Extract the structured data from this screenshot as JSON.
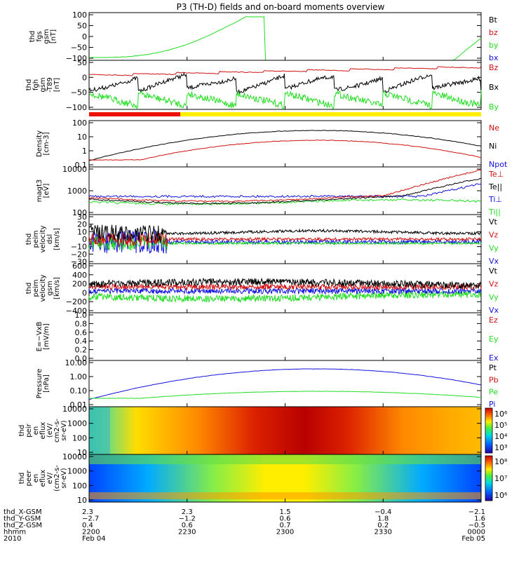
{
  "title": "P3 (TH-D) fields and on-board moments overview",
  "colors": {
    "black": "#000000",
    "red": "#d01010",
    "green": "#22dd22",
    "blue": "#1010dd",
    "yellow": "#ffee00",
    "orange": "#ee6600"
  },
  "panels": [
    {
      "id": "fgs",
      "ylabel": [
        "thd",
        "fgs",
        "gsm",
        "[nT]"
      ],
      "yticks": [
        "100",
        "50",
        "0",
        "−50",
        "−100"
      ],
      "legend": [
        {
          "text": "Bt",
          "color": "black"
        },
        {
          "text": "bz",
          "color": "red"
        },
        {
          "text": "by",
          "color": "green"
        },
        {
          "text": "bx",
          "color": "blue"
        }
      ]
    },
    {
      "id": "fgh",
      "ylabel": [
        "thd",
        "fgh",
        "gsm",
        "-T89",
        "[nT]"
      ],
      "yticks": [
        "50",
        "0",
        "−50",
        "−100"
      ],
      "legend": [
        {
          "text": "Bz",
          "color": "red"
        },
        {
          "text": "Bx",
          "color": "black"
        },
        {
          "text": "By",
          "color": "green"
        }
      ]
    },
    {
      "id": "density",
      "ylabel": [
        "Density",
        "[cm-3]"
      ],
      "yticks": [
        "100",
        "10",
        "1",
        "0.1"
      ],
      "legend": [
        {
          "text": "Ne",
          "color": "red"
        },
        {
          "text": "Ni",
          "color": "black"
        },
        {
          "text": "Npot",
          "color": "blue"
        }
      ]
    },
    {
      "id": "temp",
      "ylabel": [
        "magt3",
        "[eV]"
      ],
      "yticks": [
        "10000",
        "1000",
        "100"
      ],
      "legend": [
        {
          "text": "Te⊥",
          "color": "red"
        },
        {
          "text": "Te||",
          "color": "black"
        },
        {
          "text": "Ti⊥",
          "color": "blue"
        },
        {
          "text": "Ti||",
          "color": "green"
        }
      ]
    },
    {
      "id": "vdsl",
      "ylabel": [
        "thd",
        "peim",
        "velocity",
        "dsl",
        "[km/s]"
      ],
      "yticks": [
        "30",
        "20",
        "10",
        "0",
        "−10",
        "−20",
        "−30"
      ],
      "legend": [
        {
          "text": "Vt",
          "color": "black"
        },
        {
          "text": "Vz",
          "color": "red"
        },
        {
          "text": "Vy",
          "color": "green"
        },
        {
          "text": "Vx",
          "color": "blue"
        }
      ]
    },
    {
      "id": "vgsm",
      "ylabel": [
        "thd",
        "peim",
        "velocity",
        "gsm",
        "[km/s]"
      ],
      "yticks": [
        "600",
        "400",
        "200",
        "0",
        "−200",
        "−400"
      ],
      "legend": [
        {
          "text": "Vt",
          "color": "black"
        },
        {
          "text": "Vz",
          "color": "red"
        },
        {
          "text": "Vy",
          "color": "green"
        },
        {
          "text": "Vx",
          "color": "blue"
        }
      ]
    },
    {
      "id": "efield",
      "ylabel": [
        "E=−VxB",
        "[mV/m]"
      ],
      "yticks": [
        "1.0",
        "0.8",
        "0.6",
        "0.4",
        "0.2",
        "0.0"
      ],
      "legend": [
        {
          "text": "Ez",
          "color": "red"
        },
        {
          "text": "Ey",
          "color": "green"
        },
        {
          "text": "Ex",
          "color": "blue"
        }
      ]
    },
    {
      "id": "pressure",
      "ylabel": [
        "Pressure",
        "[nPa]"
      ],
      "yticks": [
        "10.00",
        "1.00",
        "0.10",
        "0.01"
      ],
      "legend": [
        {
          "text": "Pt",
          "color": "black"
        },
        {
          "text": "Pb",
          "color": "red"
        },
        {
          "text": "Pe",
          "color": "green"
        },
        {
          "text": "Pi",
          "color": "blue"
        }
      ]
    },
    {
      "id": "peir",
      "ylabel": [
        "thd",
        "peir",
        "en",
        "eflux",
        "(eV/",
        "cm2-s-",
        "sr-eV)"
      ],
      "yticks": [
        "10000",
        "1000",
        "100",
        "10"
      ],
      "colorbar": [
        "10⁶",
        "10⁵",
        "10⁴",
        "10³"
      ]
    },
    {
      "id": "peer",
      "ylabel": [
        "thd",
        "peer",
        "en",
        "eflux",
        "eV/",
        "(cm2-s-",
        "sr-eV)"
      ],
      "yticks": [
        "10000",
        "1000",
        "100",
        "10"
      ],
      "colorbar": [
        "10⁸",
        "10⁷",
        "10⁶"
      ]
    }
  ],
  "xaxis": {
    "row_labels": [
      "thd_X-GSM",
      "thd_Y-GSM",
      "thd_Z-GSM",
      "hhmm",
      "2010"
    ],
    "columns": [
      [
        "2.3",
        "−2.7",
        "0.4",
        "2200",
        "Feb 04"
      ],
      [
        "2.3",
        "−1.2",
        "0.6",
        "2230",
        ""
      ],
      [
        "1.5",
        "0.6",
        "0.7",
        "2300",
        ""
      ],
      [
        "−0.4",
        "1.8",
        "0.2",
        "2330",
        ""
      ],
      [
        "−2.1",
        "1.6",
        "−0.5",
        "0000",
        "Feb 05"
      ]
    ]
  },
  "chart_data": {
    "type": "line",
    "title": "P3 (TH-D) fields and on-board moments overview",
    "time_ticks": [
      "2200",
      "2230",
      "2300",
      "2330",
      "0000"
    ],
    "series": [
      {
        "panel": "fgs",
        "name": "by",
        "x": [
          0,
          0.1,
          0.25,
          0.35,
          0.4,
          0.45,
          0.93,
          1.0
        ],
        "values": [
          -100,
          -90,
          -40,
          30,
          60,
          -120,
          -120,
          -40
        ]
      },
      {
        "panel": "fgh",
        "name": "Bz",
        "x": [
          0,
          0.3,
          0.5,
          0.7,
          1.0
        ],
        "values": [
          10,
          20,
          30,
          25,
          40
        ]
      },
      {
        "panel": "density",
        "name": "Ni",
        "x": [
          0,
          0.2,
          0.4,
          0.58,
          0.8,
          1.0
        ],
        "values": [
          0.2,
          3,
          30,
          80,
          30,
          3
        ]
      },
      {
        "panel": "density",
        "name": "Ne",
        "x": [
          0,
          0.2,
          0.4,
          0.58,
          0.8,
          1.0
        ],
        "values": [
          0.3,
          0.3,
          1,
          3,
          1,
          0.2
        ]
      },
      {
        "panel": "pressure",
        "name": "Pi",
        "x": [
          0,
          0.2,
          0.4,
          0.58,
          0.8,
          1.0
        ],
        "values": [
          0.01,
          0.1,
          0.6,
          2,
          0.6,
          0.08
        ]
      },
      {
        "panel": "pressure",
        "name": "Pe",
        "x": [
          0,
          0.3,
          0.58,
          0.8,
          1.0
        ],
        "values": [
          0.03,
          0.04,
          0.12,
          0.05,
          0.03
        ]
      }
    ]
  }
}
